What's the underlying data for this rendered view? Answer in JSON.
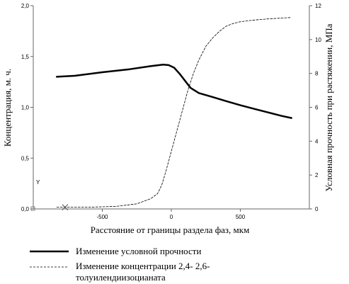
{
  "chart_data": {
    "type": "line",
    "xlabel": "Расстояние от границы раздела фаз, мкм",
    "ylabel_left": "Концентрация, м. ч.",
    "ylabel_right": "Условная прочность при растяжении, МПа",
    "xlim": [
      -1000,
      1000
    ],
    "ylim_left": [
      0,
      2.0
    ],
    "ylim_right": [
      0,
      12
    ],
    "x_ticks": [
      "-500",
      "0",
      "500"
    ],
    "y_left_ticks": [
      "0,0",
      "0,5",
      "1,0",
      "1,5",
      "2,0"
    ],
    "y_right_ticks": [
      "0",
      "2",
      "4",
      "6",
      "8",
      "10",
      "12"
    ],
    "grid": false,
    "legend_position": "bottom",
    "series": [
      {
        "name": "Изменение условной прочности",
        "axis": "left",
        "style": "solid",
        "color": "#000000",
        "x": [
          -830,
          -700,
          -500,
          -300,
          -150,
          -60,
          -20,
          20,
          60,
          100,
          140,
          200,
          300,
          400,
          500,
          600,
          700,
          800,
          870
        ],
        "y": [
          1.3,
          1.31,
          1.345,
          1.375,
          1.405,
          1.42,
          1.415,
          1.39,
          1.33,
          1.26,
          1.19,
          1.14,
          1.1,
          1.06,
          1.02,
          0.985,
          0.95,
          0.915,
          0.895
        ]
      },
      {
        "name": "Изменение концентрации 2,4- 2,6-толуилендиизоцианата",
        "axis": "right",
        "style": "dashed",
        "color": "#000000",
        "x": [
          -830,
          -600,
          -400,
          -250,
          -150,
          -100,
          -70,
          -40,
          0,
          40,
          80,
          120,
          160,
          200,
          250,
          300,
          350,
          400,
          450,
          500,
          600,
          700,
          800,
          870
        ],
        "y": [
          0.1,
          0.1,
          0.15,
          0.3,
          0.6,
          0.9,
          1.4,
          2.2,
          3.4,
          4.6,
          5.8,
          7.0,
          8.0,
          8.8,
          9.6,
          10.1,
          10.5,
          10.8,
          10.95,
          11.05,
          11.15,
          11.22,
          11.27,
          11.3
        ]
      }
    ],
    "markers": [
      {
        "symbol": "X",
        "axis": "right",
        "x": -770,
        "y": 0.1
      }
    ],
    "corner_labels": [
      "Y",
      "X"
    ]
  },
  "legend": {
    "items": [
      {
        "label": "Изменение условной прочности",
        "style": "solid"
      },
      {
        "label_line1": "Изменение концентрации 2,4- 2,6-",
        "label_line2": "толуилендиизоцианата",
        "style": "dashed"
      }
    ]
  }
}
